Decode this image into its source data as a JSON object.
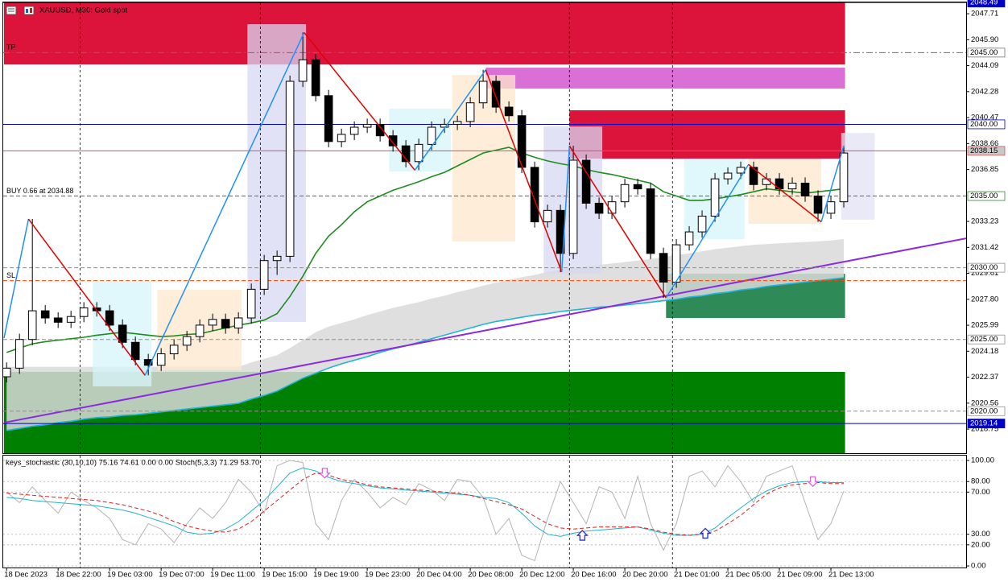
{
  "chart_data": [
    {
      "type": "candlestick",
      "title": "XAUUSD, M30:  Gold spot",
      "categories": [
        "18 Dec 2023",
        null,
        null,
        null,
        "18 Dec 22:00",
        null,
        null,
        null,
        "19 Dec 03:00",
        null,
        null,
        null,
        "19 Dec 07:00",
        null,
        null,
        null,
        "19 Dec 11:00",
        null,
        null,
        null,
        "19 Dec 15:00",
        null,
        null,
        null,
        "19 Dec 19:00",
        null,
        null,
        null,
        "19 Dec 23:00",
        null,
        null,
        null,
        "20 Dec 04:00",
        null,
        null,
        null,
        "20 Dec 08:00",
        null,
        null,
        null,
        "20 Dec 12:00",
        null,
        null,
        null,
        "20 Dec 16:00",
        null,
        null,
        null,
        "20 Dec 20:00",
        null,
        null,
        null,
        "21 Dec 01:00",
        null,
        null,
        null,
        "21 Dec 05:00",
        null,
        null,
        null,
        "21 Dec 09:00",
        null,
        null,
        null,
        "21 Dec 13:00",
        null
      ],
      "open": [
        2022.4,
        2023.0,
        2025.0,
        2027.0,
        2026.5,
        2026.2,
        2026.6,
        2027.2,
        2027.0,
        2026.0,
        2024.8,
        2023.6,
        2023.2,
        2024.0,
        2024.6,
        2025.2,
        2026.0,
        2026.4,
        2025.8,
        2026.5,
        2028.5,
        2030.5,
        2030.8,
        2043.0,
        2044.5,
        2042.0,
        2038.8,
        2039.3,
        2039.8,
        2040.0,
        2039.2,
        2038.5,
        2037.4,
        2038.6,
        2039.8,
        2040.0,
        2040.2,
        2041.5,
        2043.0,
        2041.2,
        2040.6,
        2037.0,
        2033.2,
        2034.0,
        2031.0,
        2037.5,
        2034.5,
        2033.8,
        2034.6,
        2035.8,
        2035.5,
        2031.0,
        2029.0,
        2031.6,
        2032.5,
        2033.6,
        2036.2,
        2036.6,
        2037.0,
        2035.8,
        2036.2,
        2035.5,
        2035.9,
        2035.0,
        2033.8,
        2034.6
      ],
      "high": [
        2023.4,
        2025.4,
        2033.4,
        2027.4,
        2026.9,
        2027.0,
        2027.6,
        2027.6,
        2027.4,
        2026.4,
        2025.2,
        2024.0,
        2024.4,
        2025.0,
        2025.6,
        2026.4,
        2026.8,
        2026.8,
        2026.9,
        2028.9,
        2030.9,
        2031.2,
        2043.4,
        2046.4,
        2044.9,
        2042.4,
        2039.7,
        2040.2,
        2040.4,
        2040.4,
        2039.6,
        2038.9,
        2039.0,
        2040.2,
        2040.4,
        2040.6,
        2041.9,
        2043.8,
        2043.4,
        2041.6,
        2041.0,
        2037.4,
        2034.4,
        2034.4,
        2038.5,
        2037.9,
        2034.9,
        2035.0,
        2036.2,
        2036.2,
        2035.9,
        2031.4,
        2032.0,
        2032.9,
        2034.0,
        2036.6,
        2037.0,
        2037.4,
        2037.4,
        2036.6,
        2036.6,
        2036.3,
        2036.3,
        2035.4,
        2035.0,
        2038.5
      ],
      "low": [
        2022.0,
        2022.6,
        2024.6,
        2026.1,
        2025.8,
        2025.8,
        2026.2,
        2026.6,
        2025.6,
        2024.4,
        2023.2,
        2022.5,
        2022.8,
        2023.6,
        2024.2,
        2024.8,
        2025.6,
        2025.4,
        2025.4,
        2026.1,
        2028.1,
        2029.5,
        2030.4,
        2042.6,
        2041.6,
        2038.4,
        2038.4,
        2038.9,
        2039.4,
        2038.8,
        2038.1,
        2037.0,
        2036.8,
        2038.2,
        2039.4,
        2039.6,
        2039.8,
        2041.1,
        2040.8,
        2040.2,
        2036.6,
        2032.8,
        2032.8,
        2029.7,
        2030.6,
        2034.1,
        2033.4,
        2033.4,
        2034.2,
        2035.1,
        2030.6,
        2027.9,
        2028.6,
        2031.2,
        2032.1,
        2033.2,
        2035.8,
        2036.2,
        2035.4,
        2035.4,
        2035.1,
        2035.1,
        2034.6,
        2033.2,
        2033.4,
        2034.2
      ],
      "close": [
        2023.0,
        2025.0,
        2027.0,
        2026.5,
        2026.2,
        2026.6,
        2027.2,
        2027.0,
        2026.0,
        2024.8,
        2023.6,
        2023.2,
        2024.0,
        2024.6,
        2025.2,
        2026.0,
        2026.4,
        2025.8,
        2026.5,
        2028.5,
        2030.5,
        2030.8,
        2043.0,
        2044.5,
        2042.0,
        2038.8,
        2039.3,
        2039.8,
        2040.0,
        2039.2,
        2038.5,
        2037.4,
        2038.6,
        2039.8,
        2040.0,
        2040.2,
        2041.5,
        2043.0,
        2041.2,
        2040.6,
        2037.0,
        2033.2,
        2034.0,
        2031.0,
        2037.5,
        2034.5,
        2033.8,
        2034.6,
        2035.8,
        2035.5,
        2031.0,
        2029.0,
        2031.6,
        2032.5,
        2033.6,
        2036.2,
        2036.6,
        2037.0,
        2035.8,
        2036.2,
        2035.5,
        2035.9,
        2035.0,
        2033.8,
        2034.6,
        2038.0
      ],
      "up_color": "#ffffff",
      "down_color": "#000000",
      "xlim": [
        -0.2,
        74.5
      ],
      "ylim": [
        2017.07,
        2048.5
      ],
      "yticks": [
        2047.71,
        {
          "value": 2045.9,
          "label": "2045.90"
        },
        2044.09,
        2042.28,
        2040.47,
        2038.66,
        2036.85,
        2033.23,
        2031.42,
        2029.61,
        {
          "value": 2027.8,
          "label": "2027.80"
        },
        2025.99,
        2024.18,
        2022.37,
        2020.56,
        2018.75
      ],
      "zones": [
        {
          "lo": 2044.17,
          "hi": 2048.5,
          "from": -0.2,
          "to": 65.1,
          "color": "#dc143c"
        },
        {
          "lo": 2042.49,
          "hi": 2043.95,
          "from": 37.2,
          "to": 65.1,
          "color": "#da70d6"
        },
        {
          "lo": 2037.61,
          "hi": 2040.98,
          "from": 43.7,
          "to": 65.1,
          "color": "#dc143c"
        },
        {
          "lo": 2017.07,
          "hi": 2022.74,
          "from": -0.2,
          "to": 65.1,
          "color": "#008000"
        },
        {
          "lo": 2026.5,
          "hi": 2029.58,
          "from": 51.2,
          "to": 65.1,
          "color": "#2e8b57"
        }
      ],
      "boxes": [
        {
          "lo": 2026.22,
          "hi": 2046.98,
          "from": 18.7,
          "to": 23.25,
          "color": "#d8d8f4"
        },
        {
          "lo": 2021.73,
          "hi": 2029.02,
          "from": 6.7,
          "to": 11.25,
          "color": "#d6f6fa"
        },
        {
          "lo": 2022.85,
          "hi": 2028.46,
          "from": 11.7,
          "to": 18.25,
          "color": "#fde8cc"
        },
        {
          "lo": 2036.71,
          "hi": 2041.09,
          "from": 29.7,
          "to": 34.5,
          "color": "#d6f6fa"
        },
        {
          "lo": 2031.83,
          "hi": 2043.44,
          "from": 34.6,
          "to": 39.5,
          "color": "#fde8cc"
        },
        {
          "lo": 2029.58,
          "hi": 2039.85,
          "from": 41.7,
          "to": 46.25,
          "color": "#d8d8f4"
        },
        {
          "lo": 2032.0,
          "hi": 2037.61,
          "from": 52.6,
          "to": 57.3,
          "color": "#d6f6fa"
        },
        {
          "lo": 2033.06,
          "hi": 2037.61,
          "from": 57.6,
          "to": 63.25,
          "color": "#fde8cc"
        },
        {
          "lo": 2033.35,
          "hi": 2039.4,
          "from": 64.8,
          "to": 67.4,
          "color": "#e2e2f6"
        }
      ],
      "cloud_top": {
        "color": "#d9d9d9",
        "values": [
          2023.1,
          2023.1,
          2023.1,
          2023.1,
          2023.1,
          2023.1,
          2023.1,
          2023.1,
          2023.1,
          2023.1,
          2023.1,
          2023.1,
          2023.1,
          2023.1,
          2023.1,
          2023.1,
          2023.1,
          2023.1,
          2023.1,
          2023.4,
          2023.65,
          2023.9,
          2024.4,
          2024.95,
          2025.5,
          2025.9,
          2026.15,
          2026.4,
          2026.7,
          2026.95,
          2027.2,
          2027.4,
          2027.6,
          2027.85,
          2028.05,
          2028.3,
          2028.5,
          2028.75,
          2028.95,
          2029.15,
          2029.35,
          2029.5,
          2029.7,
          2029.85,
          2030.0,
          2030.1,
          2030.2,
          2030.3,
          2030.4,
          2030.5,
          2030.6,
          2030.75,
          2030.9,
          2031.0,
          2031.15,
          2031.3,
          2031.4,
          2031.5,
          2031.6,
          2031.65,
          2031.7,
          2031.75,
          2031.8,
          2031.85,
          2031.9,
          2032.0
        ]
      },
      "ma": [
        {
          "color": "#1e8c1e",
          "values": [
            2024.1,
            2024.4,
            2024.7,
            2024.85,
            2024.95,
            2025.05,
            2025.15,
            2025.3,
            2025.4,
            2025.5,
            2025.4,
            2025.3,
            2025.2,
            2025.25,
            2025.35,
            2025.4,
            2025.6,
            2025.8,
            2026.0,
            2026.15,
            2026.35,
            2026.8,
            2028.0,
            2029.4,
            2031.0,
            2032.2,
            2033.0,
            2033.9,
            2034.6,
            2035.0,
            2035.4,
            2035.7,
            2036.0,
            2036.35,
            2036.65,
            2037.1,
            2037.55,
            2038.0,
            2038.2,
            2038.4,
            2038.0,
            2037.7,
            2037.45,
            2037.25,
            2037.1,
            2036.85,
            2036.65,
            2036.5,
            2036.3,
            2036.1,
            2035.9,
            2035.3,
            2035.0,
            2034.7,
            2034.7,
            2034.8,
            2034.95,
            2035.1,
            2035.3,
            2035.5,
            2035.4,
            2035.3,
            2035.2,
            2035.3,
            2035.4,
            2035.5
          ]
        },
        {
          "color": "#1fb4dc",
          "values": [
            2018.65,
            2018.8,
            2018.95,
            2019.05,
            2019.2,
            2019.3,
            2019.45,
            2019.55,
            2019.6,
            2019.7,
            2019.75,
            2019.85,
            2019.95,
            2020.05,
            2020.15,
            2020.25,
            2020.35,
            2020.45,
            2020.55,
            2020.85,
            2021.1,
            2021.4,
            2021.85,
            2022.3,
            2022.65,
            2023.0,
            2023.3,
            2023.55,
            2023.8,
            2024.1,
            2024.35,
            2024.55,
            2024.8,
            2025.05,
            2025.3,
            2025.55,
            2025.8,
            2026.05,
            2026.25,
            2026.4,
            2026.55,
            2026.7,
            2026.8,
            2026.95,
            2027.05,
            2027.15,
            2027.25,
            2027.3,
            2027.4,
            2027.5,
            2027.6,
            2027.7,
            2027.8,
            2027.95,
            2028.05,
            2028.2,
            2028.3,
            2028.45,
            2028.55,
            2028.7,
            2028.8,
            2028.9,
            2029.0,
            2029.1,
            2029.2,
            2029.3
          ]
        }
      ],
      "trendline": {
        "x": [
          -0.2,
          74.5
        ],
        "y": [
          2019.2,
          2032.05
        ],
        "color": "#8a2be2"
      },
      "zigzag": {
        "x": [
          -0.2,
          1.7,
          10.75,
          23.1,
          31.7,
          37.2,
          43.1,
          43.7,
          51.2,
          57.6,
          63.25,
          65
        ],
        "y": [
          2025.1,
          2033.4,
          2022.5,
          2046.4,
          2036.8,
          2043.8,
          2029.7,
          2038.5,
          2027.9,
          2037.2,
          2033.2,
          2038.5
        ],
        "up_color": "#1e90ff",
        "down_color": "#e00000"
      },
      "separators": [
        5.7,
        19.7,
        43.7,
        51.7
      ],
      "levels": [
        {
          "price": 2048.49,
          "color": "#0000c8",
          "style": "solid",
          "box": "#0000c8"
        },
        {
          "price": {
            "value": 2045,
            "label": "2045.00"
          },
          "color": "#707070",
          "style": "dashdot",
          "box": "#ffffff",
          "text": "TP"
        },
        {
          "price": {
            "value": 2040,
            "label": "2040.00"
          },
          "color": "#0000c8",
          "style": "solid",
          "box": "#ffffff"
        },
        {
          "price": 2038.15,
          "color": "#e05050",
          "style": "solid",
          "box": "#c8c8c8"
        },
        {
          "price": {
            "value": 2035,
            "label": "2035.00"
          },
          "color": "#2e8b2e",
          "style": "dash",
          "box": "#ffffff",
          "text": "BUY 0.66 at 2034.88"
        },
        {
          "price": {
            "value": 2030,
            "label": "2030.00"
          },
          "color": "#909090",
          "style": "dash",
          "box": "#ffffff"
        },
        {
          "price": 2029.1,
          "color": "#ff4500",
          "style": "dash",
          "text": "SL"
        },
        {
          "price": {
            "value": 2025,
            "label": "2025.00"
          },
          "color": "#909090",
          "style": "dash",
          "box": "#ffffff"
        },
        {
          "price": {
            "value": 2020,
            "label": "2020.00"
          },
          "color": "#909090",
          "style": "dash",
          "box": "#ffffff"
        },
        {
          "price": 2019.14,
          "color": "#0000c8",
          "style": "solid",
          "box": "#0000c8"
        }
      ]
    },
    {
      "type": "line",
      "title": "keys_stochastic (30,10,10) 75.16 74.61 0.00 0.00 Stoch(5,3,3) 71.29 53.70",
      "ylim": [
        -1.5,
        104.6
      ],
      "yticks": [
        {
          "value": 100,
          "label": "100.00"
        },
        {
          "value": 80,
          "label": "80.00"
        },
        {
          "value": 70,
          "label": "70.00"
        },
        {
          "value": 30,
          "label": "30.00"
        },
        {
          "value": 20,
          "label": "20.00"
        },
        {
          "value": 0,
          "label": "0.00"
        }
      ],
      "series": [
        {
          "color": "#b4b4b4",
          "style": "solid",
          "values": [
            70,
            60,
            75,
            62,
            50,
            70,
            62,
            55,
            45,
            25,
            20,
            40,
            35,
            22,
            40,
            55,
            45,
            60,
            82,
            70,
            50,
            95,
            100,
            98,
            40,
            25,
            62,
            82,
            70,
            55,
            65,
            58,
            78,
            72,
            62,
            82,
            80,
            65,
            30,
            45,
            10,
            5,
            45,
            80,
            60,
            40,
            75,
            70,
            45,
            85,
            40,
            15,
            40,
            85,
            90,
            75,
            95,
            80,
            60,
            85,
            90,
            95,
            60,
            25,
            40,
            71
          ]
        },
        {
          "color": "#1fb4cc",
          "style": "solid",
          "values": [
            65,
            64,
            62,
            61,
            60,
            59,
            58,
            57,
            55,
            53,
            50,
            46,
            42,
            38,
            32,
            30,
            31,
            35,
            42,
            52,
            62,
            75,
            88,
            93,
            90,
            84,
            80,
            78,
            76,
            74,
            73,
            72,
            71,
            70,
            69,
            68,
            67,
            65,
            64,
            60,
            50,
            38,
            30,
            28,
            31,
            33,
            34,
            35,
            36,
            37,
            34,
            31,
            29,
            29,
            30,
            36,
            46,
            55,
            64,
            71,
            76,
            79,
            80,
            80,
            79,
            79
          ]
        },
        {
          "color": "#e02020",
          "style": "dash",
          "values": [
            69,
            68,
            67,
            66,
            65,
            64,
            63,
            62,
            60,
            58,
            55,
            52,
            48,
            42,
            38,
            35,
            33,
            32,
            35,
            42,
            52,
            62,
            72,
            82,
            88,
            86,
            82,
            80,
            77,
            75,
            74,
            73,
            72,
            71,
            70,
            69,
            67,
            64,
            61,
            58,
            54,
            47,
            40,
            36,
            35,
            36,
            37,
            37,
            37,
            37,
            35,
            32,
            30,
            29,
            30,
            33,
            40,
            48,
            58,
            68,
            74,
            77,
            78,
            79,
            78,
            78
          ]
        }
      ],
      "arrows": [
        {
          "x": 24.7,
          "value": 88,
          "dir": "down",
          "color": "#e060e0"
        },
        {
          "x": 44.7,
          "value": 29,
          "dir": "up",
          "color": "#3030c0"
        },
        {
          "x": 54.25,
          "value": 31,
          "dir": "up",
          "color": "#3030c0"
        },
        {
          "x": 62.6,
          "value": 80,
          "dir": "down",
          "color": "#e060e0"
        }
      ]
    }
  ]
}
